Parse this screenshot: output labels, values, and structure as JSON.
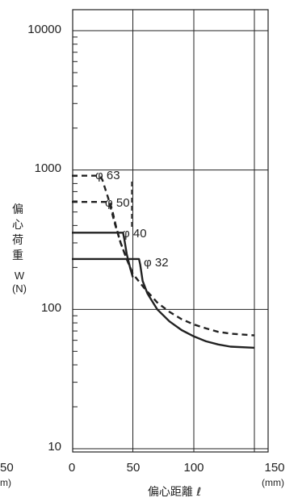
{
  "chart_data": {
    "type": "line",
    "x_scale": "linear",
    "y_scale": "log",
    "xlim": [
      0,
      150
    ],
    "ylim": [
      10,
      10000
    ],
    "x_ticks": [
      0,
      50,
      100,
      150
    ],
    "x_tick_labels": [
      "0",
      "50",
      "100",
      "150"
    ],
    "y_ticks": [
      10,
      100,
      1000,
      10000
    ],
    "y_tick_labels": [
      "10",
      "100",
      "1000",
      "10000"
    ],
    "x_unit": "(mm)",
    "xlabel": "偏心距離 ℓ",
    "ylabel_chars": [
      "偏",
      "心",
      "荷",
      "重"
    ],
    "ylabel_symbol": "W",
    "ylabel_unit": "(N)",
    "grid": true,
    "series": [
      {
        "name": "φ 63",
        "style": "dashed",
        "points": [
          [
            0,
            910
          ],
          [
            23,
            910
          ],
          [
            25,
            850
          ],
          [
            30,
            620
          ],
          [
            35,
            420
          ],
          [
            40,
            300
          ],
          [
            45,
            230
          ],
          [
            50,
            180
          ],
          [
            60,
            140
          ],
          [
            70,
            112
          ],
          [
            80,
            96
          ],
          [
            90,
            85
          ],
          [
            100,
            78
          ],
          [
            110,
            73
          ],
          [
            120,
            69
          ],
          [
            130,
            67
          ],
          [
            150,
            65
          ]
        ]
      },
      {
        "name": "φ 50",
        "style": "dashed",
        "points": [
          [
            0,
            590
          ],
          [
            31,
            590
          ],
          [
            33,
            520
          ],
          [
            36,
            400
          ],
          [
            40,
            300
          ],
          [
            45,
            230
          ],
          [
            50,
            180
          ]
        ]
      },
      {
        "name": "φ 40",
        "style": "solid",
        "points": [
          [
            0,
            355
          ],
          [
            42,
            355
          ],
          [
            43,
            320
          ],
          [
            45,
            250
          ],
          [
            48,
            195
          ],
          [
            50,
            170
          ]
        ]
      },
      {
        "name": "φ 32",
        "style": "solid",
        "points": [
          [
            0,
            230
          ],
          [
            55,
            230
          ],
          [
            56,
            210
          ],
          [
            58,
            160
          ],
          [
            62,
            130
          ],
          [
            70,
            100
          ],
          [
            80,
            82
          ],
          [
            90,
            71
          ],
          [
            100,
            64
          ],
          [
            110,
            59
          ],
          [
            120,
            56
          ],
          [
            130,
            54
          ],
          [
            150,
            53
          ]
        ]
      }
    ],
    "series_label_text": [
      "φ 63",
      "φ 50",
      "φ 40",
      "φ 32"
    ],
    "cut_labels": [
      "50",
      "m)"
    ]
  }
}
